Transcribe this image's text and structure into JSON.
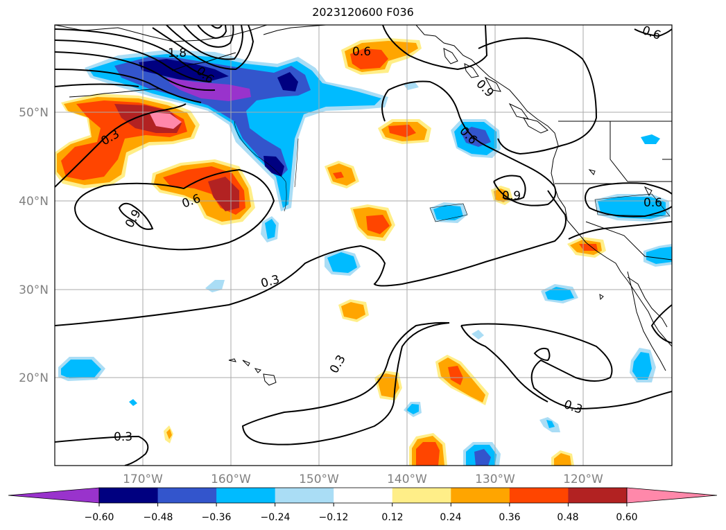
{
  "title": "2023120600 F036",
  "map": {
    "lat_labels": [
      "50°N",
      "40°N",
      "30°N",
      "20°N"
    ],
    "lon_labels": [
      "170°W",
      "160°W",
      "150°W",
      "140°W",
      "130°W",
      "120°W"
    ],
    "gridline_color": "#aaaaaa",
    "coastline_color": "#000000",
    "contour_labels": [
      "1.8",
      "0.6",
      "0.3",
      "0.6",
      "0.9",
      "0.6",
      "0.9",
      "0.6",
      "0.6",
      "0.3",
      "0.3",
      "0.3",
      "0.3",
      "0.6",
      "0.9"
    ]
  },
  "colorbar": {
    "ticks": [
      "−0.60",
      "−0.48",
      "−0.36",
      "−0.24",
      "−0.12",
      "0.12",
      "0.24",
      "0.36",
      "0.48",
      "0.60"
    ],
    "colors": [
      "#9933cc",
      "#000080",
      "#3355cc",
      "#00bbff",
      "#aaddf5",
      "#ffffff",
      "#ffee88",
      "#ffa500",
      "#ff4500",
      "#b22222",
      "#ff88aa"
    ]
  }
}
